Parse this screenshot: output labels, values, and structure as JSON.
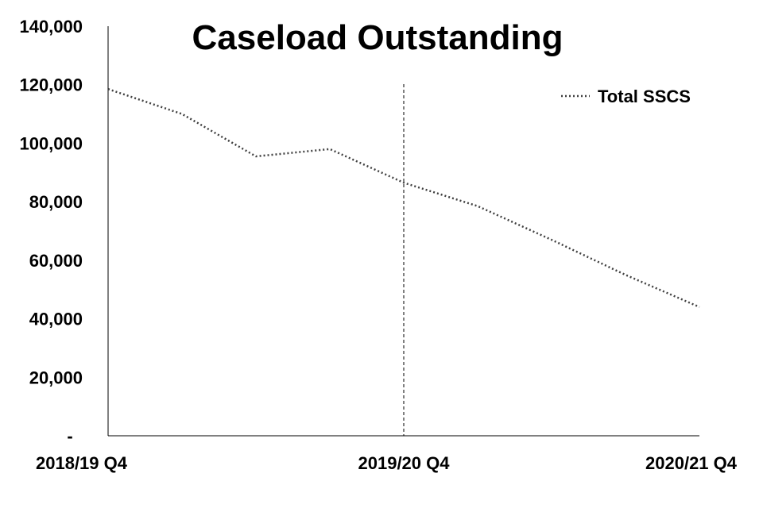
{
  "chart_data": {
    "type": "line",
    "title": "Caseload Outstanding",
    "xlabel": "",
    "ylabel": "",
    "x": [
      "2018/19 Q4",
      "",
      "",
      "",
      "2019/20 Q4",
      "",
      "",
      "",
      "2020/21 Q4"
    ],
    "x_tick_labels": [
      "2018/19 Q4",
      "2019/20 Q4",
      "2020/21 Q4"
    ],
    "y_tick_labels": [
      "-",
      "20,000",
      "40,000",
      "60,000",
      "80,000",
      "100,000",
      "120,000",
      "140,000"
    ],
    "ylim": [
      0,
      140000
    ],
    "grid": false,
    "legend": {
      "placement": "top-right",
      "entries": [
        "Total SSCS"
      ]
    },
    "series": [
      {
        "name": "Total SSCS",
        "values": [
          118500,
          110000,
          95500,
          98000,
          86500,
          78500,
          67000,
          55000,
          44000
        ],
        "line_style": "dotted",
        "color": "#404040"
      }
    ],
    "reference_line": {
      "x_index": 4,
      "style": "dashed",
      "color": "#000000"
    }
  }
}
